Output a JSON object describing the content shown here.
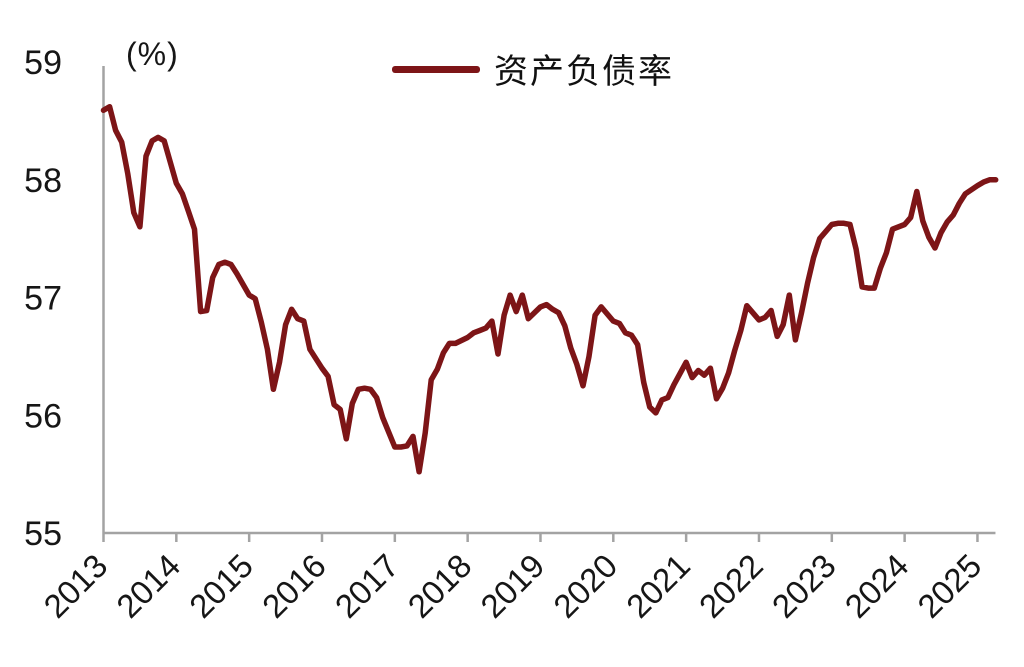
{
  "chart_data": {
    "type": "line",
    "title": "",
    "unit_label": "(%)",
    "grid": false,
    "legend_position": "top-center",
    "line_color": "#7D1517",
    "axis_color": "#a3a3a3",
    "text_color": "#161616",
    "legend": [
      {
        "name": "资产负债率",
        "color": "#7D1517"
      }
    ],
    "y_axis": {
      "min": 55,
      "max": 59,
      "ticks": [
        55,
        56,
        57,
        58,
        59
      ]
    },
    "x_axis": {
      "tick_labels": [
        "2013",
        "2014",
        "2015",
        "2016",
        "2017",
        "2018",
        "2019",
        "2020",
        "2021",
        "2022",
        "2023",
        "2024",
        "2025"
      ]
    },
    "series": [
      {
        "name": "资产负债率",
        "points": [
          [
            "2013-02",
            58.59
          ],
          [
            "2013-03",
            58.62
          ],
          [
            "2013-04",
            58.42
          ],
          [
            "2013-05",
            58.32
          ],
          [
            "2013-06",
            58.05
          ],
          [
            "2013-07",
            57.72
          ],
          [
            "2013-08",
            57.6
          ],
          [
            "2013-09",
            58.2
          ],
          [
            "2013-10",
            58.33
          ],
          [
            "2013-11",
            58.36
          ],
          [
            "2013-12",
            58.33
          ],
          [
            "2014-02",
            57.97
          ],
          [
            "2014-03",
            57.88
          ],
          [
            "2014-04",
            57.73
          ],
          [
            "2014-05",
            57.58
          ],
          [
            "2014-06",
            56.88
          ],
          [
            "2014-07",
            56.89
          ],
          [
            "2014-08",
            57.17
          ],
          [
            "2014-09",
            57.28
          ],
          [
            "2014-10",
            57.3
          ],
          [
            "2014-11",
            57.28
          ],
          [
            "2014-12",
            57.2
          ],
          [
            "2015-02",
            57.02
          ],
          [
            "2015-03",
            56.99
          ],
          [
            "2015-04",
            56.79
          ],
          [
            "2015-05",
            56.56
          ],
          [
            "2015-06",
            56.22
          ],
          [
            "2015-07",
            56.45
          ],
          [
            "2015-08",
            56.77
          ],
          [
            "2015-09",
            56.9
          ],
          [
            "2015-10",
            56.82
          ],
          [
            "2015-11",
            56.8
          ],
          [
            "2015-12",
            56.56
          ],
          [
            "2016-02",
            56.4
          ],
          [
            "2016-03",
            56.33
          ],
          [
            "2016-04",
            56.09
          ],
          [
            "2016-05",
            56.05
          ],
          [
            "2016-06",
            55.8
          ],
          [
            "2016-07",
            56.1
          ],
          [
            "2016-08",
            56.22
          ],
          [
            "2016-09",
            56.23
          ],
          [
            "2016-10",
            56.22
          ],
          [
            "2016-11",
            56.15
          ],
          [
            "2016-12",
            55.98
          ],
          [
            "2017-02",
            55.73
          ],
          [
            "2017-03",
            55.73
          ],
          [
            "2017-04",
            55.74
          ],
          [
            "2017-05",
            55.82
          ],
          [
            "2017-06",
            55.52
          ],
          [
            "2017-07",
            55.85
          ],
          [
            "2017-08",
            56.3
          ],
          [
            "2017-09",
            56.39
          ],
          [
            "2017-10",
            56.53
          ],
          [
            "2017-11",
            56.61
          ],
          [
            "2017-12",
            56.61
          ],
          [
            "2018-02",
            56.66
          ],
          [
            "2018-03",
            56.7
          ],
          [
            "2018-04",
            56.72
          ],
          [
            "2018-05",
            56.74
          ],
          [
            "2018-06",
            56.8
          ],
          [
            "2018-07",
            56.52
          ],
          [
            "2018-08",
            56.85
          ],
          [
            "2018-09",
            57.02
          ],
          [
            "2018-10",
            56.88
          ],
          [
            "2018-11",
            57.02
          ],
          [
            "2018-12",
            56.82
          ],
          [
            "2019-02",
            56.92
          ],
          [
            "2019-03",
            56.94
          ],
          [
            "2019-04",
            56.9
          ],
          [
            "2019-05",
            56.87
          ],
          [
            "2019-06",
            56.76
          ],
          [
            "2019-07",
            56.57
          ],
          [
            "2019-08",
            56.43
          ],
          [
            "2019-09",
            56.25
          ],
          [
            "2019-10",
            56.5
          ],
          [
            "2019-11",
            56.85
          ],
          [
            "2019-12",
            56.92
          ],
          [
            "2020-02",
            56.8
          ],
          [
            "2020-03",
            56.78
          ],
          [
            "2020-04",
            56.7
          ],
          [
            "2020-05",
            56.68
          ],
          [
            "2020-06",
            56.6
          ],
          [
            "2020-07",
            56.28
          ],
          [
            "2020-08",
            56.07
          ],
          [
            "2020-09",
            56.02
          ],
          [
            "2020-10",
            56.13
          ],
          [
            "2020-11",
            56.15
          ],
          [
            "2020-12",
            56.26
          ],
          [
            "2021-02",
            56.45
          ],
          [
            "2021-03",
            56.32
          ],
          [
            "2021-04",
            56.38
          ],
          [
            "2021-05",
            56.34
          ],
          [
            "2021-06",
            56.4
          ],
          [
            "2021-07",
            56.14
          ],
          [
            "2021-08",
            56.23
          ],
          [
            "2021-09",
            56.36
          ],
          [
            "2021-10",
            56.55
          ],
          [
            "2021-11",
            56.72
          ],
          [
            "2021-12",
            56.93
          ],
          [
            "2022-02",
            56.81
          ],
          [
            "2022-03",
            56.83
          ],
          [
            "2022-04",
            56.89
          ],
          [
            "2022-05",
            56.67
          ],
          [
            "2022-06",
            56.77
          ],
          [
            "2022-07",
            57.02
          ],
          [
            "2022-08",
            56.64
          ],
          [
            "2022-09",
            56.87
          ],
          [
            "2022-10",
            57.12
          ],
          [
            "2022-11",
            57.34
          ],
          [
            "2022-12",
            57.5
          ],
          [
            "2023-02",
            57.62
          ],
          [
            "2023-03",
            57.63
          ],
          [
            "2023-04",
            57.63
          ],
          [
            "2023-05",
            57.62
          ],
          [
            "2023-06",
            57.41
          ],
          [
            "2023-07",
            57.09
          ],
          [
            "2023-08",
            57.08
          ],
          [
            "2023-09",
            57.08
          ],
          [
            "2023-10",
            57.25
          ],
          [
            "2023-11",
            57.38
          ],
          [
            "2023-12",
            57.58
          ],
          [
            "2024-02",
            57.62
          ],
          [
            "2024-03",
            57.68
          ],
          [
            "2024-04",
            57.9
          ],
          [
            "2024-05",
            57.65
          ],
          [
            "2024-06",
            57.51
          ],
          [
            "2024-07",
            57.42
          ],
          [
            "2024-08",
            57.55
          ],
          [
            "2024-09",
            57.64
          ],
          [
            "2024-10",
            57.7
          ],
          [
            "2024-11",
            57.8
          ],
          [
            "2024-12",
            57.88
          ],
          [
            "2025-02",
            57.95
          ],
          [
            "2025-03",
            57.98
          ],
          [
            "2025-04",
            58.0
          ],
          [
            "2025-05",
            58.0
          ]
        ]
      }
    ]
  }
}
